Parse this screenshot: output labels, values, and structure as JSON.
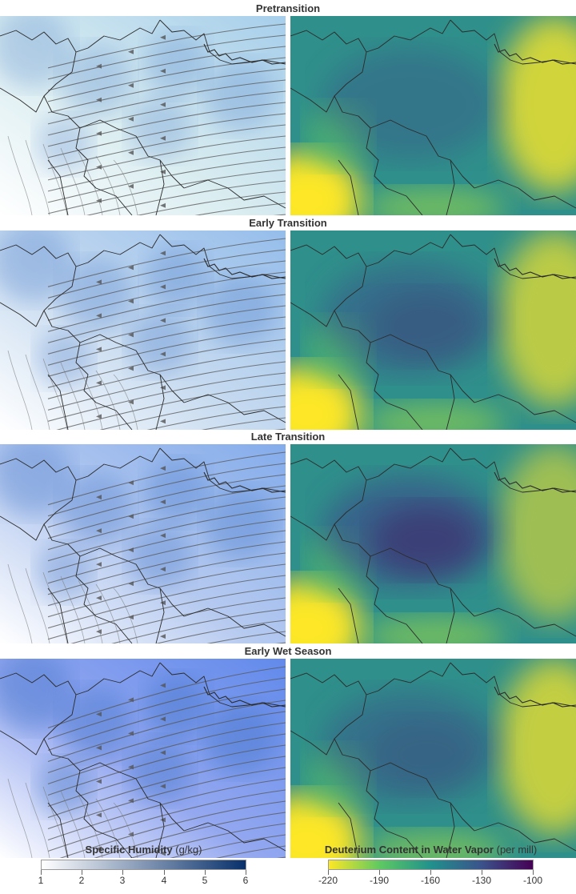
{
  "panels": [
    {
      "title": "Pretransition",
      "humidity_level": 0.35,
      "deuterium_level": 0.45
    },
    {
      "title": "Early Transition",
      "humidity_level": 0.45,
      "deuterium_level": 0.6
    },
    {
      "title": "Late Transition",
      "humidity_level": 0.55,
      "deuterium_level": 0.8
    },
    {
      "title": "Early Wet Season",
      "humidity_level": 0.75,
      "deuterium_level": 0.55
    }
  ],
  "legend_humidity": {
    "title": "Specific Humidity",
    "unit": "(g/kg)",
    "ticks": [
      "1",
      "2",
      "3",
      "4",
      "5",
      "6"
    ],
    "colors": [
      "#ffffff",
      "#08306b"
    ]
  },
  "legend_deuterium": {
    "title": "Deuterium Content in Water Vapor",
    "unit": "(per mill)",
    "ticks": [
      "-220",
      "-190",
      "-160",
      "-130",
      "-100"
    ],
    "colors": [
      "#fde725",
      "#5ec962",
      "#21918c",
      "#3b528b",
      "#440154"
    ]
  }
}
